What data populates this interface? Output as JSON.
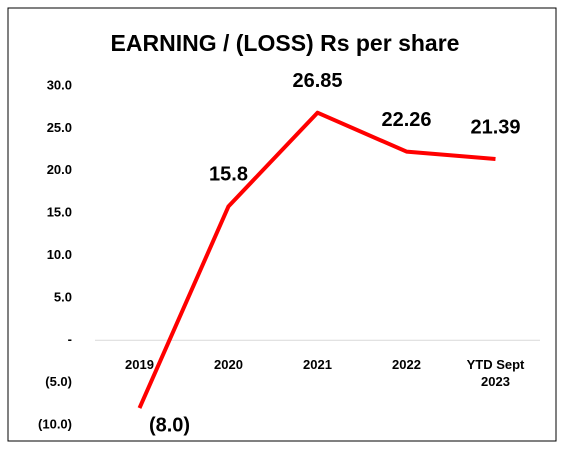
{
  "chart_data": {
    "type": "line",
    "title": "EARNING / (LOSS) Rs per share",
    "categories": [
      "2019",
      "2020",
      "2021",
      "2022",
      "YTD Sept 2023"
    ],
    "values": [
      -8.0,
      15.8,
      26.85,
      22.26,
      21.39
    ],
    "value_labels": [
      "(8.0)",
      "15.8",
      "26.85",
      "22.26",
      "21.39"
    ],
    "color": "#ff0000",
    "ylim": [
      -10,
      30
    ],
    "yticks": [
      {
        "value": 30,
        "label": "30.0"
      },
      {
        "value": 25,
        "label": "25.0"
      },
      {
        "value": 20,
        "label": "20.0"
      },
      {
        "value": 15,
        "label": "15.0"
      },
      {
        "value": 10,
        "label": "10.0"
      },
      {
        "value": 5,
        "label": "5.0"
      },
      {
        "value": 0,
        "label": "-"
      },
      {
        "value": -5,
        "label": "(5.0)"
      },
      {
        "value": -10,
        "label": "(10.0)"
      }
    ],
    "grid": false
  }
}
